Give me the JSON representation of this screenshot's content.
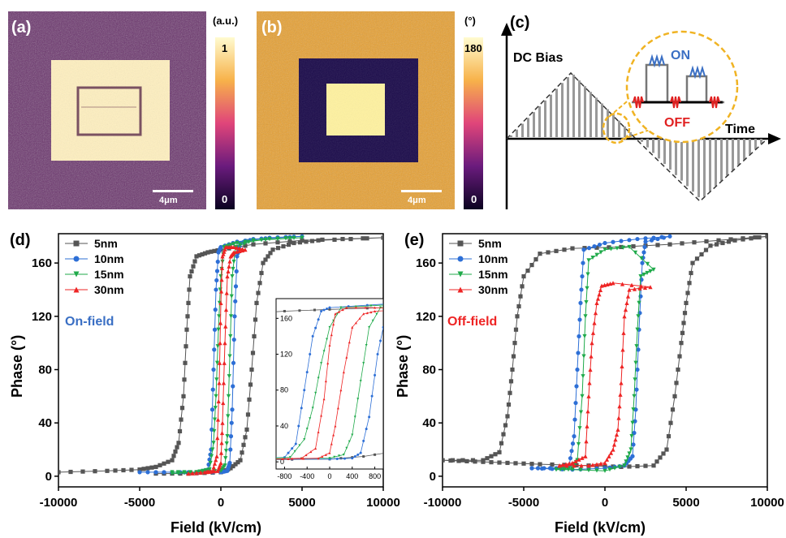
{
  "panel_a": {
    "letter": "(a)",
    "colorbar_unit": "(a.u.)",
    "colorbar_max": "1",
    "colorbar_min": "0",
    "scalebar": "4μm"
  },
  "panel_b": {
    "letter": "(b)",
    "colorbar_unit": "(°)",
    "colorbar_max": "180",
    "colorbar_min": "0",
    "scalebar": "4μm"
  },
  "panel_c": {
    "letter": "(c)",
    "dc_bias": "DC Bias",
    "time": "Time",
    "on": "ON",
    "off": "OFF",
    "colors": {
      "on": "#3a6fc4",
      "off": "#e02020",
      "circle": "#f0b323"
    }
  },
  "colors": {
    "5nm": "#555555",
    "10nm": "#2d6fd6",
    "15nm": "#1faa4a",
    "30nm": "#ee2424",
    "cmap_top": "#fff7c0",
    "cmap_mid": "#e0457a",
    "cmap_bottom": "#0d0426"
  },
  "chart_data": [
    {
      "type": "line",
      "panel": "(d)",
      "xlabel": "Field (kV/cm)",
      "ylabel": "Phase (°)",
      "annotation": "On-field",
      "xlim": [
        -10000,
        10000
      ],
      "ylim": [
        -8,
        182
      ],
      "xticks": [
        "-10000",
        "-5000",
        "0",
        "5000",
        "10000"
      ],
      "yticks": [
        "0",
        "40",
        "80",
        "120",
        "160"
      ],
      "series": [
        {
          "name": "5nm",
          "color": "#555555",
          "marker": "square",
          "forward": [
            [
              -10000,
              3
            ],
            [
              -7000,
              4
            ],
            [
              -5000,
              5
            ],
            [
              -4000,
              7
            ],
            [
              -3000,
              12
            ],
            [
              -2600,
              25
            ],
            [
              -2300,
              60
            ],
            [
              -2100,
              110
            ],
            [
              -1900,
              150
            ],
            [
              -1500,
              165
            ],
            [
              -800,
              168
            ],
            [
              0,
              170
            ],
            [
              2000,
              174
            ],
            [
              5000,
              177
            ],
            [
              10000,
              179
            ]
          ],
          "backward": [
            [
              10000,
              179
            ],
            [
              6000,
              177
            ],
            [
              4500,
              175
            ],
            [
              3200,
              170
            ],
            [
              2600,
              160
            ],
            [
              2200,
              130
            ],
            [
              1900,
              80
            ],
            [
              1600,
              35
            ],
            [
              1200,
              12
            ],
            [
              600,
              6
            ],
            [
              0,
              3
            ],
            [
              -2000,
              2
            ],
            [
              -4000,
              2
            ]
          ]
        },
        {
          "name": "10nm",
          "color": "#2d6fd6",
          "marker": "circle",
          "forward": [
            [
              -5000,
              3
            ],
            [
              -3000,
              3
            ],
            [
              -1500,
              3
            ],
            [
              -800,
              5
            ],
            [
              -600,
              20
            ],
            [
              -450,
              80
            ],
            [
              -300,
              140
            ],
            [
              -150,
              168
            ],
            [
              0,
              172
            ],
            [
              1000,
              176
            ],
            [
              3000,
              179
            ],
            [
              5000,
              180
            ]
          ],
          "backward": [
            [
              5000,
              180
            ],
            [
              2000,
              178
            ],
            [
              1200,
              175
            ],
            [
              1000,
              165
            ],
            [
              850,
              120
            ],
            [
              700,
              50
            ],
            [
              550,
              10
            ],
            [
              400,
              4
            ],
            [
              0,
              3
            ],
            [
              -2000,
              3
            ],
            [
              -4000,
              3
            ]
          ]
        },
        {
          "name": "15nm",
          "color": "#1faa4a",
          "marker": "triangle-down",
          "forward": [
            [
              -3000,
              3
            ],
            [
              -1500,
              3
            ],
            [
              -700,
              5
            ],
            [
              -450,
              25
            ],
            [
              -300,
              60
            ],
            [
              -150,
              110
            ],
            [
              0,
              150
            ],
            [
              200,
              172
            ],
            [
              1000,
              175
            ],
            [
              3000,
              178
            ],
            [
              5000,
              179
            ]
          ],
          "backward": [
            [
              5000,
              179
            ],
            [
              2000,
              177
            ],
            [
              900,
              172
            ],
            [
              700,
              150
            ],
            [
              550,
              90
            ],
            [
              400,
              30
            ],
            [
              250,
              8
            ],
            [
              0,
              4
            ],
            [
              -1500,
              3
            ],
            [
              -3000,
              2
            ]
          ]
        },
        {
          "name": "30nm",
          "color": "#ee2424",
          "marker": "triangle-up",
          "forward": [
            [
              -2000,
              2
            ],
            [
              -1000,
              3
            ],
            [
              -500,
              4
            ],
            [
              -250,
              15
            ],
            [
              -100,
              70
            ],
            [
              0,
              130
            ],
            [
              100,
              165
            ],
            [
              300,
              172
            ],
            [
              800,
              172
            ],
            [
              1500,
              170
            ]
          ],
          "backward": [
            [
              1500,
              170
            ],
            [
              800,
              168
            ],
            [
              600,
              165
            ],
            [
              400,
              150
            ],
            [
              250,
              100
            ],
            [
              100,
              40
            ],
            [
              0,
              10
            ],
            [
              -200,
              4
            ],
            [
              -1000,
              3
            ],
            [
              -2000,
              2
            ]
          ]
        }
      ],
      "inset": {
        "xlim": [
          -950,
          950
        ],
        "ylim": [
          -8,
          182
        ],
        "xticks": [
          "-800",
          "-400",
          "0",
          "400",
          "800"
        ],
        "yticks": [
          "0",
          "40",
          "80",
          "120",
          "160"
        ]
      }
    },
    {
      "type": "line",
      "panel": "(e)",
      "xlabel": "Field (kV/cm)",
      "ylabel": "Phase (°)",
      "annotation": "Off-field",
      "xlim": [
        -10000,
        10000
      ],
      "ylim": [
        -8,
        182
      ],
      "xticks": [
        "-10000",
        "-5000",
        "0",
        "5000",
        "10000"
      ],
      "yticks": [
        "0",
        "40",
        "80",
        "120",
        "160"
      ],
      "series": [
        {
          "name": "5nm",
          "color": "#555555",
          "marker": "square",
          "forward": [
            [
              -10000,
              12
            ],
            [
              -8000,
              11
            ],
            [
              -6000,
              10
            ],
            [
              -4000,
              9
            ],
            [
              -1000,
              8
            ],
            [
              1000,
              7
            ],
            [
              3000,
              8
            ],
            [
              3800,
              20
            ],
            [
              4300,
              60
            ],
            [
              4700,
              100
            ],
            [
              5000,
              130
            ],
            [
              5400,
              160
            ],
            [
              6500,
              173
            ],
            [
              8000,
              177
            ],
            [
              10000,
              180
            ]
          ],
          "backward": [
            [
              10000,
              180
            ],
            [
              7000,
              177
            ],
            [
              4000,
              174
            ],
            [
              1000,
              172
            ],
            [
              -2000,
              171
            ],
            [
              -4000,
              167
            ],
            [
              -5000,
              150
            ],
            [
              -5400,
              120
            ],
            [
              -5700,
              80
            ],
            [
              -6000,
              45
            ],
            [
              -6500,
              18
            ],
            [
              -7500,
              12
            ],
            [
              -10000,
              12
            ]
          ]
        },
        {
          "name": "10nm",
          "color": "#2d6fd6",
          "marker": "circle",
          "forward": [
            [
              -4500,
              6
            ],
            [
              -3000,
              6
            ],
            [
              -2200,
              8
            ],
            [
              -1900,
              30
            ],
            [
              -1700,
              80
            ],
            [
              -1500,
              130
            ],
            [
              -1300,
              170
            ],
            [
              0,
              175
            ],
            [
              2000,
              178
            ],
            [
              4000,
              180
            ]
          ],
          "backward": [
            [
              4000,
              180
            ],
            [
              2500,
              176
            ],
            [
              2300,
              160
            ],
            [
              2100,
              110
            ],
            [
              1900,
              50
            ],
            [
              1700,
              15
            ],
            [
              1200,
              8
            ],
            [
              0,
              6
            ],
            [
              -2000,
              5
            ],
            [
              -4500,
              6
            ]
          ]
        },
        {
          "name": "15nm",
          "color": "#1faa4a",
          "marker": "triangle-down",
          "forward": [
            [
              -3000,
              5
            ],
            [
              -2000,
              6
            ],
            [
              -1700,
              12
            ],
            [
              -1400,
              60
            ],
            [
              -1200,
              120
            ],
            [
              -1000,
              162
            ],
            [
              0,
              170
            ],
            [
              1500,
              172
            ],
            [
              3000,
              155
            ]
          ],
          "backward": [
            [
              3000,
              155
            ],
            [
              2200,
              150
            ],
            [
              2000,
              110
            ],
            [
              1800,
              60
            ],
            [
              1600,
              20
            ],
            [
              1200,
              8
            ],
            [
              0,
              4
            ],
            [
              -2000,
              5
            ],
            [
              -3000,
              5
            ]
          ]
        },
        {
          "name": "30nm",
          "color": "#ee2424",
          "marker": "triangle-up",
          "forward": [
            [
              -2800,
              8
            ],
            [
              -2000,
              10
            ],
            [
              -1200,
              15
            ],
            [
              -1000,
              60
            ],
            [
              -800,
              100
            ],
            [
              -500,
              130
            ],
            [
              -200,
              143
            ],
            [
              500,
              145
            ],
            [
              2800,
              142
            ]
          ],
          "backward": [
            [
              2800,
              142
            ],
            [
              1500,
              140
            ],
            [
              1200,
              120
            ],
            [
              1000,
              70
            ],
            [
              800,
              35
            ],
            [
              500,
              20
            ],
            [
              0,
              10
            ],
            [
              -1000,
              8
            ],
            [
              -2800,
              8
            ]
          ]
        }
      ]
    }
  ]
}
